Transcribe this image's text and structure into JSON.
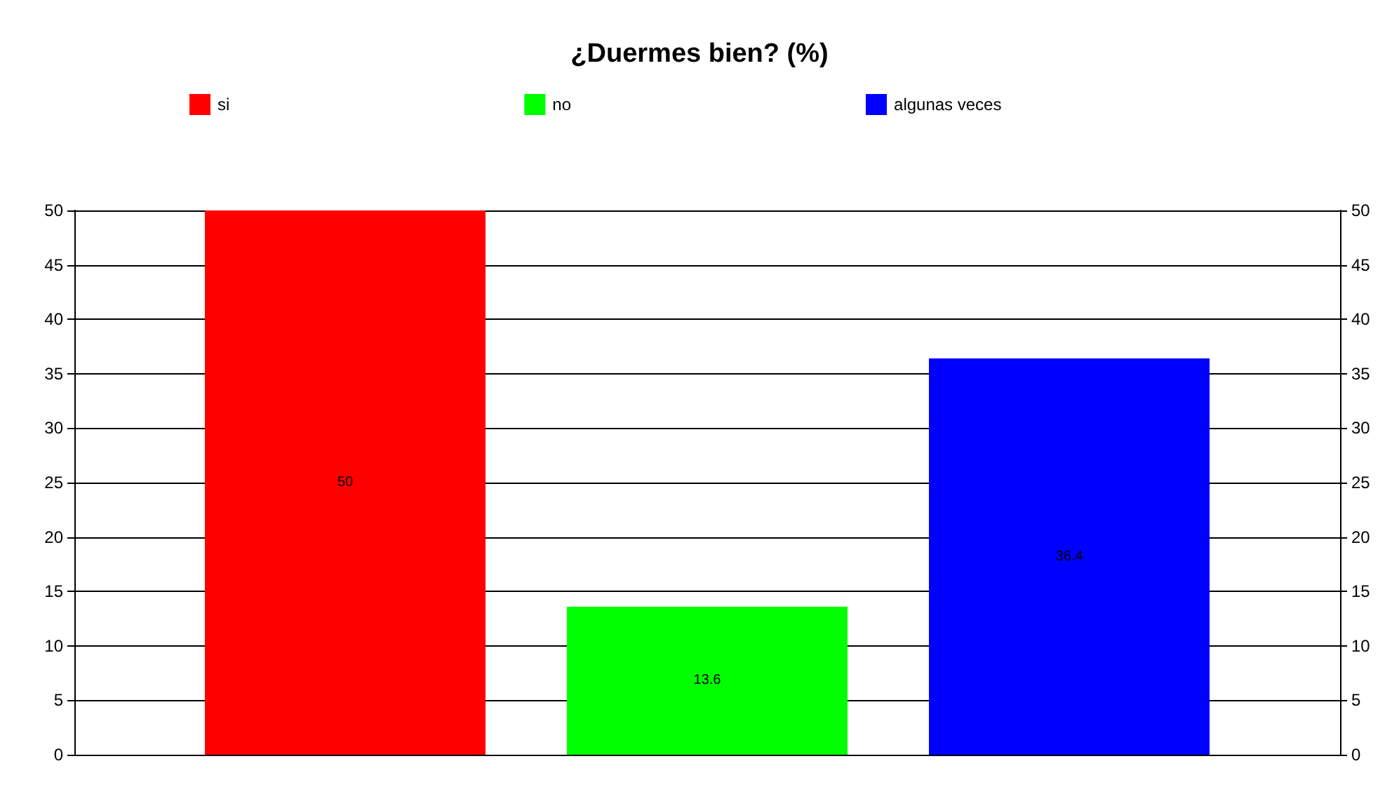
{
  "chart_data": {
    "type": "bar",
    "title": "¿Duermes bien? (%)",
    "categories": [
      null
    ],
    "series": [
      {
        "name": "si",
        "color": "#ff0000",
        "values": [
          50
        ]
      },
      {
        "name": "no",
        "color": "#00ff00",
        "values": [
          13.6
        ]
      },
      {
        "name": "algunas veces",
        "color": "#0000ff",
        "values": [
          36.4
        ]
      }
    ],
    "ylim": [
      0,
      50
    ],
    "yticks": [
      0,
      5,
      10,
      15,
      20,
      25,
      30,
      35,
      40,
      45,
      50
    ],
    "y2lim": [
      0,
      50
    ],
    "y2ticks": [
      0,
      5,
      10,
      15,
      20,
      25,
      30,
      35,
      40,
      45,
      50
    ],
    "data_labels": true,
    "grid": "y",
    "legend": "top"
  }
}
